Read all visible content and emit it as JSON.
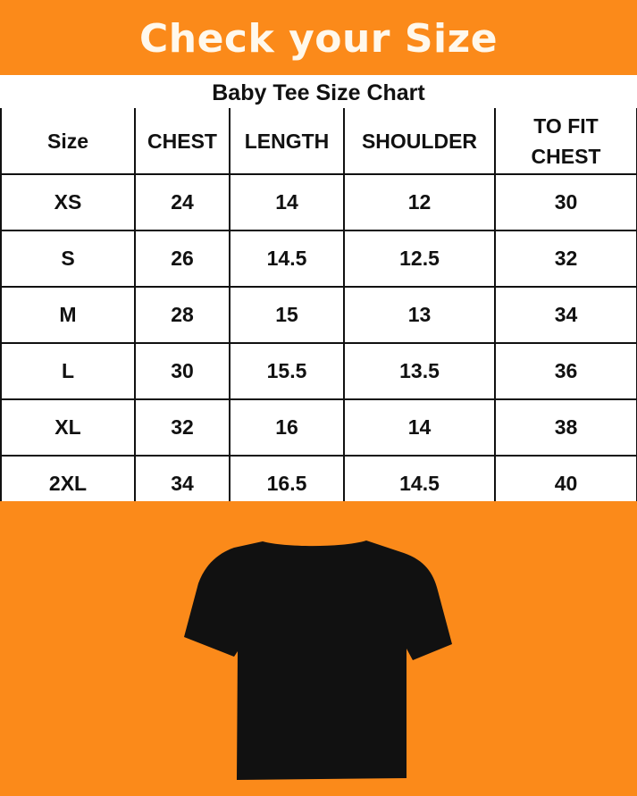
{
  "banner": {
    "title": "Check your Size"
  },
  "chart": {
    "title": "Baby Tee Size Chart",
    "headers": [
      "Size",
      "CHEST",
      "LENGTH",
      "SHOULDER",
      "TO FIT CHEST"
    ],
    "rows": [
      [
        "XS",
        "24",
        "14",
        "12",
        "30"
      ],
      [
        "S",
        "26",
        "14.5",
        "12.5",
        "32"
      ],
      [
        "M",
        "28",
        "15",
        "13",
        "34"
      ],
      [
        "L",
        "30",
        "15.5",
        "13.5",
        "36"
      ],
      [
        "XL",
        "32",
        "16",
        "14",
        "38"
      ],
      [
        "2XL",
        "34",
        "16.5",
        "14.5",
        "40"
      ]
    ]
  },
  "colors": {
    "accent": "#fb8a1a",
    "garment": "#111111"
  },
  "image": {
    "icon": "black-baby-tee-icon"
  }
}
